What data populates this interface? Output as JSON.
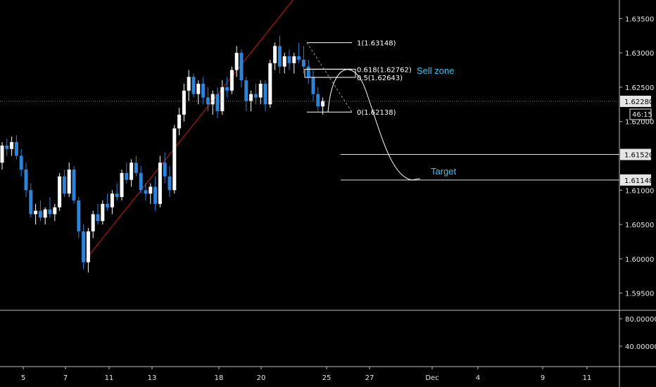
{
  "colors": {
    "background": "#000000",
    "bull_candle": "#ffffff",
    "bear_candle": "#2d83d8",
    "trendline": "#b01818",
    "fib_line": "#ffffff",
    "target_line": "#e0e0e0",
    "annotation_text": "#3fc4f2",
    "price_label_bg": "#e6e6e6",
    "price_label_text": "#000000"
  },
  "chart_data": {
    "type": "candlestick",
    "title": "",
    "x_tick_labels": [
      "5",
      "7",
      "11",
      "13",
      "18",
      "20",
      "25",
      "27",
      "Dec",
      "4",
      "9",
      "11"
    ],
    "y_ticks": [
      "1.63500",
      "1.63000",
      "1.62500",
      "1.62000",
      "1.61000",
      "1.60500",
      "1.60000",
      "1.59500"
    ],
    "ylim": [
      1.5925,
      1.6377
    ],
    "grid": false,
    "current_price": {
      "value": 1.6228,
      "label": "1.62280",
      "countdown": "46:15"
    },
    "candles_ohlc": [
      [
        1.614,
        1.617,
        1.613,
        1.6165
      ],
      [
        1.6165,
        1.6175,
        1.615,
        1.616
      ],
      [
        1.616,
        1.6178,
        1.615,
        1.617
      ],
      [
        1.617,
        1.618,
        1.6145,
        1.615
      ],
      [
        1.615,
        1.616,
        1.612,
        1.613
      ],
      [
        1.613,
        1.614,
        1.609,
        1.61
      ],
      [
        1.61,
        1.611,
        1.606,
        1.6065
      ],
      [
        1.6065,
        1.608,
        1.605,
        1.607
      ],
      [
        1.607,
        1.6085,
        1.6055,
        1.606
      ],
      [
        1.606,
        1.6075,
        1.605,
        1.6072
      ],
      [
        1.6072,
        1.609,
        1.606,
        1.6065
      ],
      [
        1.6065,
        1.608,
        1.6055,
        1.6075
      ],
      [
        1.6075,
        1.6125,
        1.607,
        1.612
      ],
      [
        1.612,
        1.613,
        1.609,
        1.6095
      ],
      [
        1.6095,
        1.614,
        1.609,
        1.613
      ],
      [
        1.613,
        1.6135,
        1.608,
        1.6085
      ],
      [
        1.6085,
        1.609,
        1.603,
        1.604
      ],
      [
        1.604,
        1.605,
        1.5985,
        1.5995
      ],
      [
        1.5995,
        1.6045,
        1.598,
        1.604
      ],
      [
        1.604,
        1.607,
        1.603,
        1.6065
      ],
      [
        1.6065,
        1.608,
        1.605,
        1.6055
      ],
      [
        1.6055,
        1.6085,
        1.605,
        1.608
      ],
      [
        1.608,
        1.6095,
        1.607,
        1.6075
      ],
      [
        1.6075,
        1.61,
        1.6065,
        1.6095
      ],
      [
        1.6095,
        1.611,
        1.6085,
        1.609
      ],
      [
        1.609,
        1.613,
        1.6085,
        1.6125
      ],
      [
        1.6125,
        1.614,
        1.611,
        1.6115
      ],
      [
        1.6115,
        1.6145,
        1.6105,
        1.614
      ],
      [
        1.614,
        1.615,
        1.612,
        1.6125
      ],
      [
        1.6125,
        1.6135,
        1.6095,
        1.61
      ],
      [
        1.61,
        1.611,
        1.6085,
        1.6095
      ],
      [
        1.6095,
        1.611,
        1.608,
        1.6105
      ],
      [
        1.6105,
        1.612,
        1.607,
        1.608
      ],
      [
        1.608,
        1.615,
        1.6075,
        1.614
      ],
      [
        1.614,
        1.6155,
        1.611,
        1.612
      ],
      [
        1.612,
        1.6135,
        1.609,
        1.61
      ],
      [
        1.61,
        1.6195,
        1.6095,
        1.619
      ],
      [
        1.619,
        1.622,
        1.618,
        1.621
      ],
      [
        1.621,
        1.6255,
        1.62,
        1.6245
      ],
      [
        1.6245,
        1.6275,
        1.623,
        1.6265
      ],
      [
        1.6265,
        1.627,
        1.6235,
        1.624
      ],
      [
        1.624,
        1.626,
        1.6225,
        1.6255
      ],
      [
        1.6255,
        1.6265,
        1.6225,
        1.6235
      ],
      [
        1.6235,
        1.625,
        1.6215,
        1.6225
      ],
      [
        1.6225,
        1.6245,
        1.621,
        1.624
      ],
      [
        1.624,
        1.625,
        1.6205,
        1.6215
      ],
      [
        1.6215,
        1.626,
        1.621,
        1.625
      ],
      [
        1.625,
        1.6265,
        1.6235,
        1.6245
      ],
      [
        1.6245,
        1.628,
        1.624,
        1.6275
      ],
      [
        1.6275,
        1.631,
        1.6265,
        1.63
      ],
      [
        1.63,
        1.6305,
        1.625,
        1.626
      ],
      [
        1.626,
        1.6265,
        1.6215,
        1.623
      ],
      [
        1.623,
        1.6245,
        1.6215,
        1.624
      ],
      [
        1.624,
        1.6255,
        1.6225,
        1.6235
      ],
      [
        1.6235,
        1.626,
        1.6225,
        1.6255
      ],
      [
        1.6255,
        1.626,
        1.6215,
        1.6225
      ],
      [
        1.6225,
        1.629,
        1.622,
        1.6285
      ],
      [
        1.6285,
        1.6315,
        1.6275,
        1.631
      ],
      [
        1.631,
        1.6325,
        1.627,
        1.628
      ],
      [
        1.628,
        1.63,
        1.627,
        1.6295
      ],
      [
        1.6295,
        1.6305,
        1.6275,
        1.6285
      ],
      [
        1.6285,
        1.63,
        1.627,
        1.6295
      ],
      [
        1.6295,
        1.6315,
        1.6285,
        1.629
      ],
      [
        1.629,
        1.631,
        1.627,
        1.628
      ],
      [
        1.628,
        1.629,
        1.6255,
        1.6265
      ],
      [
        1.6265,
        1.6275,
        1.623,
        1.624
      ],
      [
        1.624,
        1.625,
        1.6215,
        1.6222
      ],
      [
        1.6222,
        1.6235,
        1.621,
        1.623
      ]
    ],
    "trendline": [
      [
        1.5995,
        17
      ],
      [
        1.644,
        68
      ]
    ],
    "fib_levels": [
      {
        "label": "1(1.63148)",
        "value": 1.63148
      },
      {
        "label": "0.618(1.62762)",
        "value": 1.62762
      },
      {
        "label": "0.5(1.62643)",
        "value": 1.62643
      },
      {
        "label": "0(1.62138)",
        "value": 1.62138
      }
    ],
    "horizontal_levels": [
      {
        "label": "1.61520",
        "value": 1.6152
      },
      {
        "label": "1.61148",
        "value": 1.61148
      }
    ],
    "annotations": {
      "sell_zone": "Sell zone",
      "target": "Target"
    },
    "indicator_pane": {
      "y_ticks": [
        "80.00000",
        "40.00000"
      ]
    }
  }
}
